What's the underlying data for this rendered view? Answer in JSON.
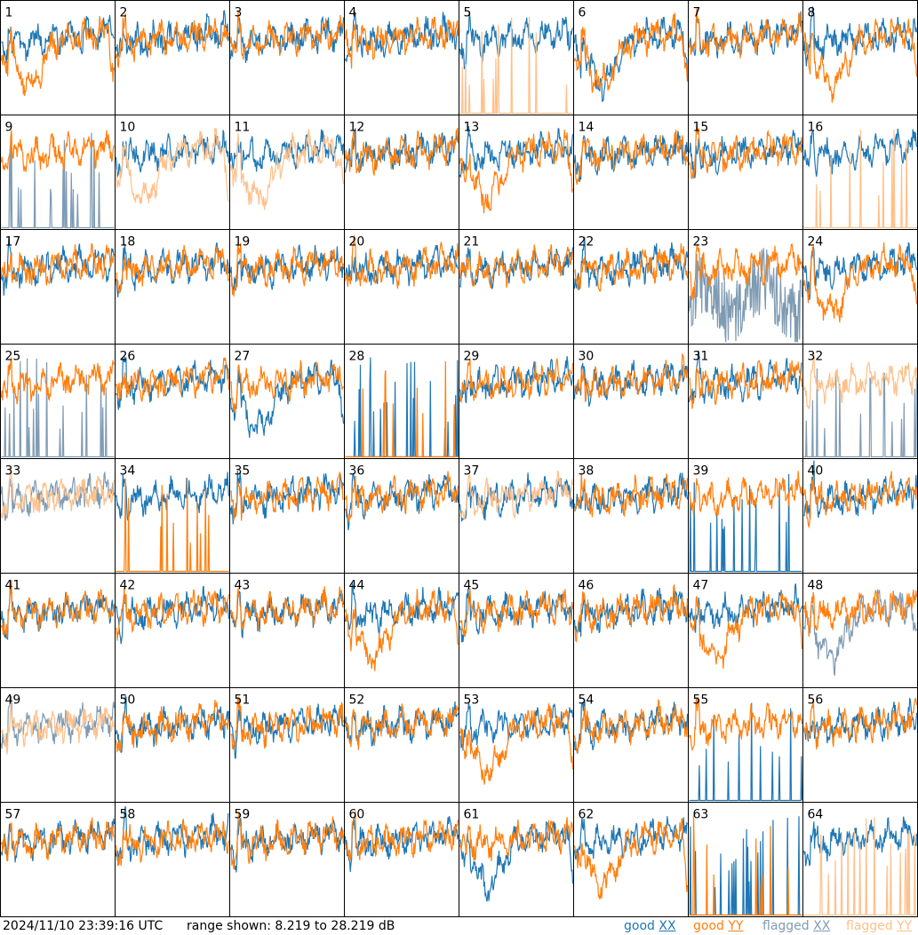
{
  "chart_data": {
    "type": "line",
    "grid": {
      "rows": 8,
      "cols": 8
    },
    "panels": [
      {
        "label": "1",
        "shape_xx": "flat",
        "shape_yy": "bowl",
        "flag_xx": false,
        "flag_yy": false
      },
      {
        "label": "2",
        "shape_xx": "flat",
        "shape_yy": "flat",
        "flag_xx": false,
        "flag_yy": false
      },
      {
        "label": "3",
        "shape_xx": "flat",
        "shape_yy": "flat",
        "flag_xx": false,
        "flag_yy": false
      },
      {
        "label": "4",
        "shape_xx": "flat",
        "shape_yy": "flat",
        "flag_xx": false,
        "flag_yy": false
      },
      {
        "label": "5",
        "shape_xx": "flat",
        "shape_yy": "spikes",
        "flag_xx": false,
        "flag_yy": true
      },
      {
        "label": "6",
        "shape_xx": "bowl",
        "shape_yy": "bowl",
        "flag_xx": false,
        "flag_yy": false
      },
      {
        "label": "7",
        "shape_xx": "flat",
        "shape_yy": "flat",
        "flag_xx": false,
        "flag_yy": false
      },
      {
        "label": "8",
        "shape_xx": "flat",
        "shape_yy": "bowl",
        "flag_xx": false,
        "flag_yy": false
      },
      {
        "label": "9",
        "shape_xx": "spikes",
        "shape_yy": "flat",
        "flag_xx": true,
        "flag_yy": false
      },
      {
        "label": "10",
        "shape_xx": "flat",
        "shape_yy": "bowl",
        "flag_xx": false,
        "flag_yy": true
      },
      {
        "label": "11",
        "shape_xx": "flat",
        "shape_yy": "bowl",
        "flag_xx": false,
        "flag_yy": true
      },
      {
        "label": "12",
        "shape_xx": "flat",
        "shape_yy": "flat",
        "flag_xx": false,
        "flag_yy": false
      },
      {
        "label": "13",
        "shape_xx": "flat",
        "shape_yy": "bowl",
        "flag_xx": false,
        "flag_yy": false
      },
      {
        "label": "14",
        "shape_xx": "flat",
        "shape_yy": "flat",
        "flag_xx": false,
        "flag_yy": false
      },
      {
        "label": "15",
        "shape_xx": "flat",
        "shape_yy": "flat",
        "flag_xx": false,
        "flag_yy": false
      },
      {
        "label": "16",
        "shape_xx": "flat",
        "shape_yy": "spikes",
        "flag_xx": false,
        "flag_yy": true
      },
      {
        "label": "17",
        "shape_xx": "flat",
        "shape_yy": "flat",
        "flag_xx": false,
        "flag_yy": false
      },
      {
        "label": "18",
        "shape_xx": "flat",
        "shape_yy": "flat",
        "flag_xx": false,
        "flag_yy": false
      },
      {
        "label": "19",
        "shape_xx": "flat",
        "shape_yy": "flat",
        "flag_xx": false,
        "flag_yy": false
      },
      {
        "label": "20",
        "shape_xx": "flat",
        "shape_yy": "flat",
        "flag_xx": false,
        "flag_yy": false
      },
      {
        "label": "21",
        "shape_xx": "flat",
        "shape_yy": "flat",
        "flag_xx": false,
        "flag_yy": false
      },
      {
        "label": "22",
        "shape_xx": "flat",
        "shape_yy": "flat",
        "flag_xx": false,
        "flag_yy": false
      },
      {
        "label": "23",
        "shape_xx": "noisy",
        "shape_yy": "flat",
        "flag_xx": true,
        "flag_yy": false
      },
      {
        "label": "24",
        "shape_xx": "flat",
        "shape_yy": "bowl",
        "flag_xx": false,
        "flag_yy": false
      },
      {
        "label": "25",
        "shape_xx": "spikes",
        "shape_yy": "flat",
        "flag_xx": true,
        "flag_yy": false
      },
      {
        "label": "26",
        "shape_xx": "flat",
        "shape_yy": "flat",
        "flag_xx": false,
        "flag_yy": false
      },
      {
        "label": "27",
        "shape_xx": "bowl",
        "shape_yy": "flat",
        "flag_xx": false,
        "flag_yy": false
      },
      {
        "label": "28",
        "shape_xx": "spikes",
        "shape_yy": "spikes",
        "flag_xx": false,
        "flag_yy": false
      },
      {
        "label": "29",
        "shape_xx": "flat",
        "shape_yy": "flat",
        "flag_xx": false,
        "flag_yy": false
      },
      {
        "label": "30",
        "shape_xx": "flat",
        "shape_yy": "flat",
        "flag_xx": false,
        "flag_yy": false
      },
      {
        "label": "31",
        "shape_xx": "flat",
        "shape_yy": "flat",
        "flag_xx": false,
        "flag_yy": false
      },
      {
        "label": "32",
        "shape_xx": "spikes",
        "shape_yy": "flat",
        "flag_xx": true,
        "flag_yy": true
      },
      {
        "label": "33",
        "shape_xx": "flat",
        "shape_yy": "flat",
        "flag_xx": true,
        "flag_yy": true
      },
      {
        "label": "34",
        "shape_xx": "flat",
        "shape_yy": "spikes",
        "flag_xx": false,
        "flag_yy": false
      },
      {
        "label": "35",
        "shape_xx": "flat",
        "shape_yy": "flat",
        "flag_xx": false,
        "flag_yy": false
      },
      {
        "label": "36",
        "shape_xx": "flat",
        "shape_yy": "flat",
        "flag_xx": false,
        "flag_yy": false
      },
      {
        "label": "37",
        "shape_xx": "flat",
        "shape_yy": "flat",
        "flag_xx": false,
        "flag_yy": true
      },
      {
        "label": "38",
        "shape_xx": "flat",
        "shape_yy": "flat",
        "flag_xx": false,
        "flag_yy": false
      },
      {
        "label": "39",
        "shape_xx": "spikes",
        "shape_yy": "flat",
        "flag_xx": false,
        "flag_yy": false
      },
      {
        "label": "40",
        "shape_xx": "flat",
        "shape_yy": "flat",
        "flag_xx": false,
        "flag_yy": false
      },
      {
        "label": "41",
        "shape_xx": "flat",
        "shape_yy": "flat",
        "flag_xx": false,
        "flag_yy": false
      },
      {
        "label": "42",
        "shape_xx": "flat",
        "shape_yy": "flat",
        "flag_xx": false,
        "flag_yy": false
      },
      {
        "label": "43",
        "shape_xx": "flat",
        "shape_yy": "flat",
        "flag_xx": false,
        "flag_yy": false
      },
      {
        "label": "44",
        "shape_xx": "flat",
        "shape_yy": "bowl",
        "flag_xx": false,
        "flag_yy": false
      },
      {
        "label": "45",
        "shape_xx": "flat",
        "shape_yy": "flat",
        "flag_xx": false,
        "flag_yy": false
      },
      {
        "label": "46",
        "shape_xx": "flat",
        "shape_yy": "flat",
        "flag_xx": false,
        "flag_yy": false
      },
      {
        "label": "47",
        "shape_xx": "flat",
        "shape_yy": "bowl",
        "flag_xx": false,
        "flag_yy": false
      },
      {
        "label": "48",
        "shape_xx": "bowl",
        "shape_yy": "flat",
        "flag_xx": true,
        "flag_yy": false
      },
      {
        "label": "49",
        "shape_xx": "flat",
        "shape_yy": "flat",
        "flag_xx": true,
        "flag_yy": true
      },
      {
        "label": "50",
        "shape_xx": "flat",
        "shape_yy": "flat",
        "flag_xx": false,
        "flag_yy": false
      },
      {
        "label": "51",
        "shape_xx": "flat",
        "shape_yy": "flat",
        "flag_xx": false,
        "flag_yy": false
      },
      {
        "label": "52",
        "shape_xx": "flat",
        "shape_yy": "flat",
        "flag_xx": false,
        "flag_yy": false
      },
      {
        "label": "53",
        "shape_xx": "flat",
        "shape_yy": "bowl",
        "flag_xx": false,
        "flag_yy": false
      },
      {
        "label": "54",
        "shape_xx": "flat",
        "shape_yy": "flat",
        "flag_xx": false,
        "flag_yy": false
      },
      {
        "label": "55",
        "shape_xx": "spikes",
        "shape_yy": "flat",
        "flag_xx": false,
        "flag_yy": false
      },
      {
        "label": "56",
        "shape_xx": "flat",
        "shape_yy": "flat",
        "flag_xx": false,
        "flag_yy": false
      },
      {
        "label": "57",
        "shape_xx": "flat",
        "shape_yy": "flat",
        "flag_xx": false,
        "flag_yy": false
      },
      {
        "label": "58",
        "shape_xx": "flat",
        "shape_yy": "flat",
        "flag_xx": false,
        "flag_yy": false
      },
      {
        "label": "59",
        "shape_xx": "flat",
        "shape_yy": "flat",
        "flag_xx": false,
        "flag_yy": false
      },
      {
        "label": "60",
        "shape_xx": "flat",
        "shape_yy": "flat",
        "flag_xx": false,
        "flag_yy": false
      },
      {
        "label": "61",
        "shape_xx": "bowl",
        "shape_yy": "flat",
        "flag_xx": false,
        "flag_yy": false
      },
      {
        "label": "62",
        "shape_xx": "flat",
        "shape_yy": "bowl",
        "flag_xx": false,
        "flag_yy": false
      },
      {
        "label": "63",
        "shape_xx": "spikes",
        "shape_yy": "spikes",
        "flag_xx": false,
        "flag_yy": false
      },
      {
        "label": "64",
        "shape_xx": "flat",
        "shape_yy": "spikes",
        "flag_xx": false,
        "flag_yy": true
      }
    ],
    "range_db": [
      8.219,
      28.219
    ],
    "colors": {
      "good_xx": "#1f77b4",
      "good_yy": "#ff7f0e",
      "flagged_xx": "#7f9bb3",
      "flagged_yy": "#ffc08a",
      "frame": "#000000",
      "background": "#ffffff"
    }
  },
  "footer": {
    "timestamp": "2024/11/10 23:39:16 UTC",
    "range": "range shown: 8.219 to 28.219 dB",
    "legend": [
      {
        "label": "good",
        "pol": "XX",
        "color": "#1f77b4"
      },
      {
        "label": "good",
        "pol": "YY",
        "color": "#ff7f0e"
      },
      {
        "label": "flagged",
        "pol": "XX",
        "color": "#7f9bb3"
      },
      {
        "label": "flagged",
        "pol": "YY",
        "color": "#ffc08a"
      }
    ]
  }
}
